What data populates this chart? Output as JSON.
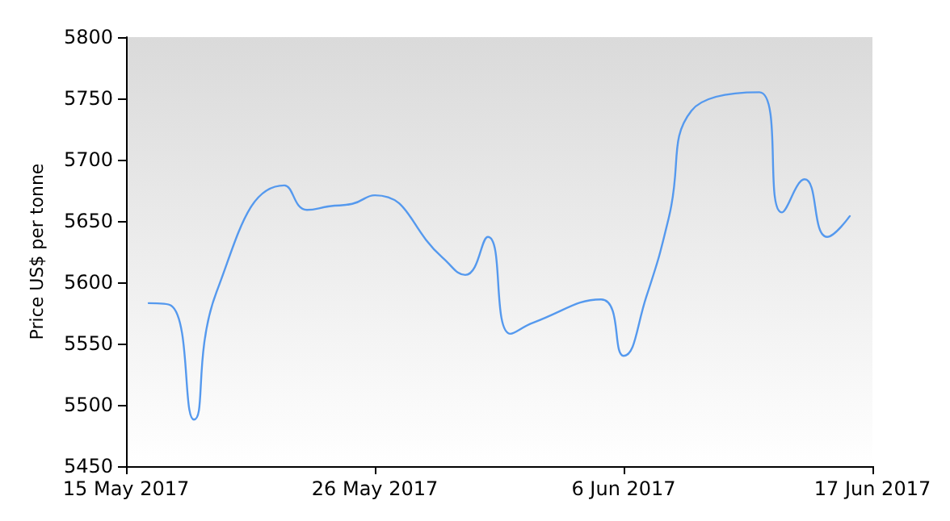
{
  "chart_data": {
    "type": "line",
    "ylabel": "Price US$ per tonne",
    "x": [
      "2017-05-16",
      "2017-05-17",
      "2017-05-18",
      "2017-05-19",
      "2017-05-22",
      "2017-05-23",
      "2017-05-24",
      "2017-05-25",
      "2017-05-26",
      "2017-05-29",
      "2017-05-30",
      "2017-05-31",
      "2017-06-01",
      "2017-06-02",
      "2017-06-05",
      "2017-06-06",
      "2017-06-07",
      "2017-06-08",
      "2017-06-09",
      "2017-06-12",
      "2017-06-13",
      "2017-06-14",
      "2017-06-15",
      "2017-06-16"
    ],
    "series": [
      {
        "color": "#5599ee",
        "values": [
          5583,
          5581,
          5488,
          5592,
          5679,
          5659,
          5662,
          5664,
          5671,
          5620,
          5606,
          5637,
          5558,
          5567,
          5586,
          5540,
          5588,
          5653,
          5740,
          5755,
          5657,
          5684,
          5637,
          5654
        ]
      }
    ],
    "xlim": [
      "2017-05-15",
      "2017-06-17"
    ],
    "xticks": [
      {
        "value": "2017-05-15",
        "label": "15 May 2017"
      },
      {
        "value": "2017-05-26",
        "label": "26 May 2017"
      },
      {
        "value": "2017-06-06",
        "label": "6 Jun 2017"
      },
      {
        "value": "2017-06-17",
        "label": "17 Jun 2017"
      }
    ],
    "ylim": [
      5450,
      5800
    ],
    "yticks": [
      5450,
      5500,
      5550,
      5600,
      5650,
      5700,
      5750,
      5800
    ],
    "grid": false,
    "marker": "none",
    "line_style": "solid"
  }
}
